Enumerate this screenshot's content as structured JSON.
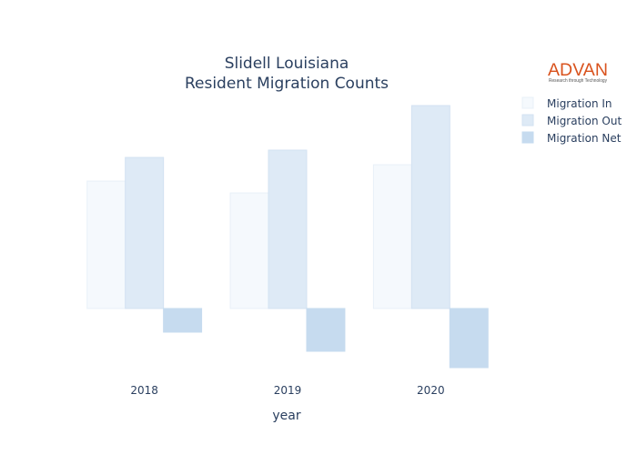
{
  "logo": {
    "word": "ADVAN",
    "tagline": "Research through Technology",
    "color": "#d9531e"
  },
  "chart_data": {
    "type": "bar",
    "title_lines": [
      "Slidell Louisiana",
      "Resident Migration Counts"
    ],
    "xlabel": "year",
    "ylabel": "",
    "categories": [
      "2018",
      "2019",
      "2020"
    ],
    "series": [
      {
        "name": "Migration In",
        "values": [
          140,
          127,
          158
        ],
        "color": "#f5f9fd",
        "stroke": "#e8f0f8"
      },
      {
        "name": "Migration Out",
        "values": [
          166,
          174,
          223
        ],
        "color": "#deeaf6",
        "stroke": "#d3e2f2"
      },
      {
        "name": "Migration Net",
        "values": [
          -26,
          -47,
          -65
        ],
        "color": "#c6dbef",
        "stroke": "#c6dbef"
      }
    ],
    "ylim": [
      -70,
      225
    ],
    "grid": false,
    "yaxis_visible": false,
    "legend_position": "top-right"
  }
}
